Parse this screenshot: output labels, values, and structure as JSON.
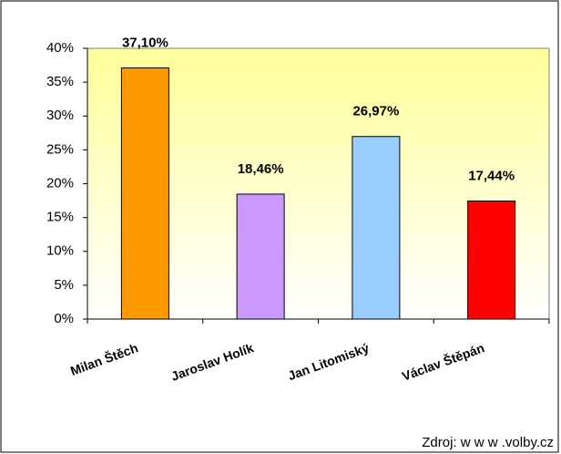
{
  "chart_data": {
    "type": "bar",
    "categories": [
      "Milan Štěch",
      "Jaroslav Holík",
      "Jan Litomiský",
      "Václav Štěpán"
    ],
    "values": [
      37.1,
      18.46,
      26.97,
      17.44
    ],
    "value_labels": [
      "37,10%",
      "18,46%",
      "26,97%",
      "17,44%"
    ],
    "colors": [
      "#ff9900",
      "#cc99ff",
      "#99ccff",
      "#ff0000"
    ],
    "ylim": [
      0,
      40
    ],
    "yticks": [
      {
        "value": 0,
        "label": "0%"
      },
      {
        "value": 5,
        "label": "5%"
      },
      {
        "value": 10,
        "label": "10%"
      },
      {
        "value": 15,
        "label": "15%"
      },
      {
        "value": 20,
        "label": "20%"
      },
      {
        "value": 25,
        "label": "25%"
      },
      {
        "value": 30,
        "label": "30%"
      },
      {
        "value": 35,
        "label": "35%"
      },
      {
        "value": 40,
        "label": "40%"
      }
    ],
    "source": "Zdroj: w w w .volby.cz"
  }
}
